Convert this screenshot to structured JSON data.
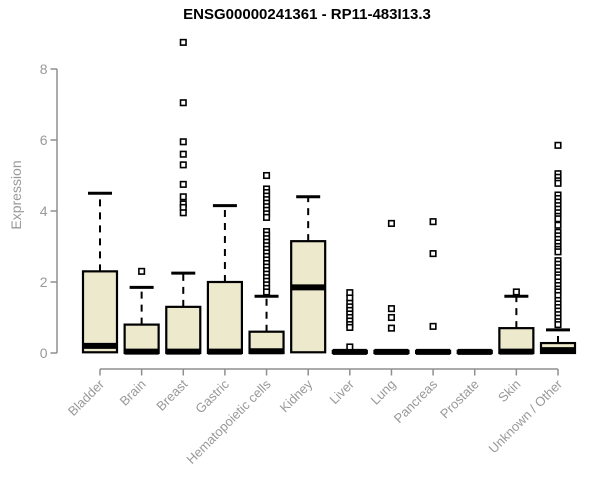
{
  "chart_data": {
    "type": "box",
    "title": "ENSG00000241361 - RP11-483I13.3",
    "ylabel": "Expression",
    "xlabel": "",
    "ylim": [
      0,
      8
    ],
    "yticks": [
      0,
      2,
      4,
      6,
      8
    ],
    "grid": false,
    "legend": false,
    "categories": [
      "Bladder",
      "Brain",
      "Breast",
      "Gastric",
      "Hematopoietic cells",
      "Kidney",
      "Liver",
      "Lung",
      "Pancreas",
      "Prostate",
      "Skin",
      "Unknown / Other"
    ],
    "boxes": [
      {
        "category": "Bladder",
        "whisker_low": 0,
        "q1": 0.02,
        "median": 0.2,
        "q3": 2.3,
        "whisker_high": 4.5,
        "outliers": []
      },
      {
        "category": "Brain",
        "whisker_low": 0,
        "q1": 0,
        "median": 0.04,
        "q3": 0.8,
        "whisker_high": 1.85,
        "outliers": [
          2.3
        ]
      },
      {
        "category": "Breast",
        "whisker_low": 0,
        "q1": 0,
        "median": 0.04,
        "q3": 1.3,
        "whisker_high": 2.25,
        "outliers": [
          8.75,
          7.05,
          5.95,
          5.6,
          5.3,
          4.75,
          4.4,
          4.2,
          4.1,
          3.95
        ]
      },
      {
        "category": "Gastric",
        "whisker_low": 0,
        "q1": 0,
        "median": 0.04,
        "q3": 2.0,
        "whisker_high": 4.15,
        "outliers": []
      },
      {
        "category": "Hematopoietic cells",
        "whisker_low": 0,
        "q1": 0,
        "median": 0.05,
        "q3": 0.6,
        "whisker_high": 1.6,
        "outliers": [
          5.0,
          4.62,
          4.52,
          4.42,
          4.32,
          4.22,
          4.12,
          4.02,
          3.92,
          3.82,
          3.42,
          3.32,
          3.22,
          3.12,
          3.02,
          2.92,
          2.82,
          2.72,
          2.62,
          2.52,
          2.42,
          2.32,
          2.22,
          2.12,
          2.02,
          1.92,
          1.82,
          1.72
        ]
      },
      {
        "category": "Kidney",
        "whisker_low": 0,
        "q1": 0.02,
        "median": 1.85,
        "q3": 3.15,
        "whisker_high": 4.4,
        "outliers": []
      },
      {
        "category": "Liver",
        "whisker_low": 0,
        "q1": 0,
        "median": 0.03,
        "q3": 0.06,
        "whisker_high": 0.06,
        "outliers": [
          1.7,
          1.55,
          1.4,
          1.3,
          1.2,
          1.1,
          1.0,
          0.9,
          0.8,
          0.72,
          0.17
        ]
      },
      {
        "category": "Lung",
        "whisker_low": 0,
        "q1": 0,
        "median": 0.03,
        "q3": 0.06,
        "whisker_high": 0.06,
        "outliers": [
          3.65,
          1.25,
          1.0,
          0.7
        ]
      },
      {
        "category": "Pancreas",
        "whisker_low": 0,
        "q1": 0,
        "median": 0.03,
        "q3": 0.06,
        "whisker_high": 0.06,
        "outliers": [
          3.7,
          2.8,
          0.75
        ]
      },
      {
        "category": "Prostate",
        "whisker_low": 0,
        "q1": 0,
        "median": 0.03,
        "q3": 0.06,
        "whisker_high": 0.06,
        "outliers": []
      },
      {
        "category": "Skin",
        "whisker_low": 0,
        "q1": 0,
        "median": 0.04,
        "q3": 0.7,
        "whisker_high": 1.6,
        "outliers": [
          1.72
        ]
      },
      {
        "category": "Unknown / Other",
        "whisker_low": 0,
        "q1": 0,
        "median": 0.08,
        "q3": 0.28,
        "whisker_high": 0.65,
        "outliers": [
          5.85,
          5.05,
          4.95,
          4.85,
          4.78,
          4.45,
          4.35,
          4.25,
          4.15,
          4.05,
          3.95,
          3.85,
          3.78,
          3.6,
          3.4,
          3.3,
          3.2,
          3.1,
          3.0,
          2.92,
          2.85,
          2.6,
          2.5,
          2.4,
          2.3,
          2.2,
          2.12,
          2.0,
          1.9,
          1.8,
          1.72,
          1.62,
          1.48,
          1.38,
          1.28,
          1.18,
          1.08,
          0.98,
          0.88,
          0.8
        ]
      }
    ],
    "colors": {
      "box_fill": "#ede9cd",
      "box_stroke": "#000000",
      "axis": "#8f8f8f",
      "tick_label": "#999999",
      "title": "#000000"
    }
  }
}
